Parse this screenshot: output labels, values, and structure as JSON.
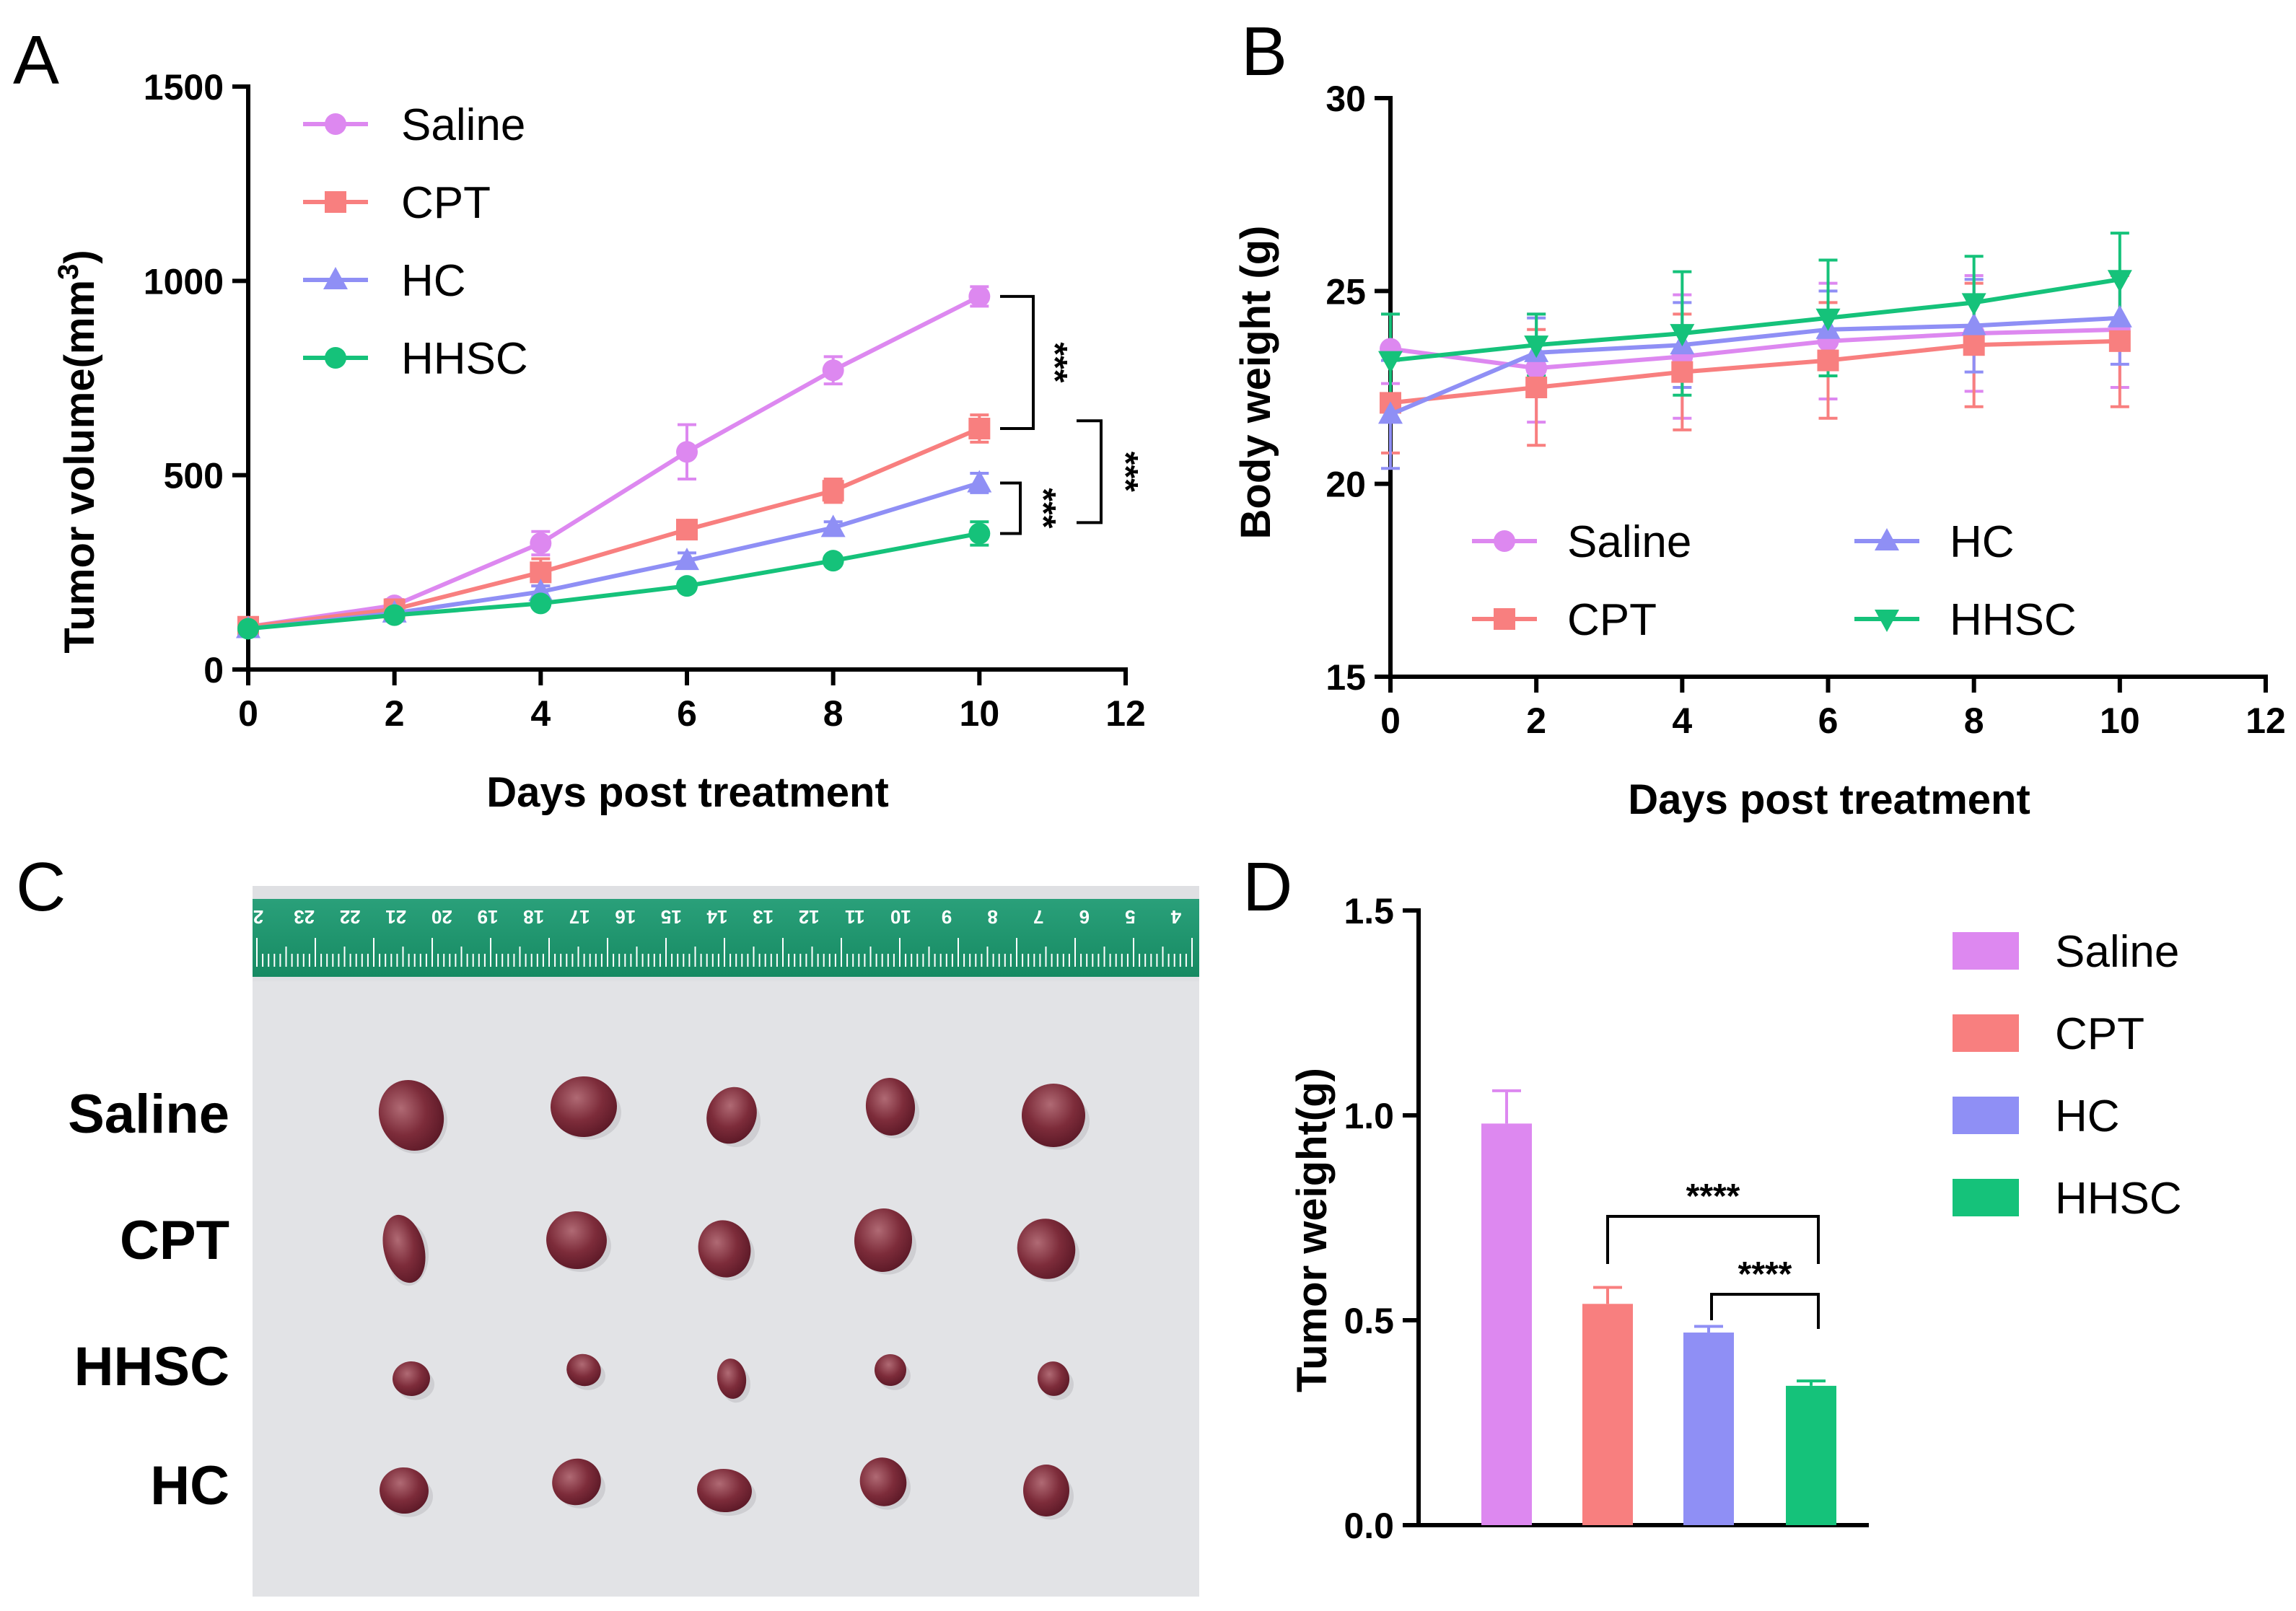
{
  "figure": {
    "panels": [
      {
        "letter": "A"
      },
      {
        "letter": "B"
      },
      {
        "letter": "C"
      },
      {
        "letter": "D"
      }
    ]
  },
  "colors": {
    "Saline": "#dd88f0",
    "CPT": "#f87f7f",
    "HC": "#8f8ff5",
    "HHSC": "#15c27a"
  },
  "chart_data": [
    {
      "id": "A",
      "type": "line",
      "title": "",
      "xlabel": "Days post treatment",
      "ylabel_main": "Tumor volume(mm",
      "ylabel_sup": "3",
      "ylabel_close": ")",
      "xlim": [
        0,
        12
      ],
      "ylim": [
        0,
        1500
      ],
      "xticks": [
        "0",
        "2",
        "4",
        "6",
        "8",
        "10",
        "12"
      ],
      "yticks": [
        "0",
        "500",
        "1000",
        "1500"
      ],
      "x": [
        0,
        2,
        4,
        6,
        8,
        10
      ],
      "legend_position": "top-left",
      "series": [
        {
          "name": "Saline",
          "marker": "circle",
          "values": [
            110,
            165,
            325,
            560,
            770,
            960
          ],
          "errors": [
            10,
            15,
            30,
            70,
            35,
            25
          ]
        },
        {
          "name": "CPT",
          "marker": "square",
          "values": [
            110,
            155,
            250,
            360,
            460,
            620
          ],
          "errors": [
            10,
            12,
            35,
            15,
            30,
            35
          ]
        },
        {
          "name": "HC",
          "marker": "triangle-up",
          "values": [
            105,
            145,
            200,
            280,
            365,
            480
          ],
          "errors": [
            8,
            10,
            15,
            20,
            15,
            25
          ]
        },
        {
          "name": "HHSC",
          "marker": "circle",
          "values": [
            105,
            140,
            170,
            215,
            280,
            350
          ],
          "errors": [
            8,
            8,
            10,
            10,
            10,
            30
          ]
        }
      ],
      "annotations": [
        "***",
        "***",
        "***"
      ]
    },
    {
      "id": "B",
      "type": "line",
      "title": "",
      "xlabel": "Days post treatment",
      "ylabel": "Body weight (g)",
      "xlim": [
        0,
        12
      ],
      "ylim": [
        15,
        30
      ],
      "xticks": [
        "0",
        "2",
        "4",
        "6",
        "8",
        "10",
        "12"
      ],
      "yticks": [
        "15",
        "20",
        "25",
        "30"
      ],
      "x": [
        0,
        2,
        4,
        6,
        8,
        10
      ],
      "legend_position": "bottom-center",
      "series": [
        {
          "name": "Saline",
          "marker": "circle",
          "values": [
            23.5,
            23.0,
            23.3,
            23.7,
            23.9,
            24.0
          ],
          "errors": [
            0.9,
            1.4,
            1.6,
            1.5,
            1.5,
            1.5
          ]
        },
        {
          "name": "CPT",
          "marker": "square",
          "values": [
            22.1,
            22.5,
            22.9,
            23.2,
            23.6,
            23.7
          ],
          "errors": [
            1.3,
            1.5,
            1.5,
            1.5,
            1.6,
            1.7
          ]
        },
        {
          "name": "HC",
          "marker": "triangle-up",
          "values": [
            21.8,
            23.4,
            23.6,
            24.0,
            24.1,
            24.3
          ],
          "errors": [
            1.4,
            0.9,
            1.1,
            1.0,
            1.2,
            1.2
          ]
        },
        {
          "name": "HHSC",
          "marker": "triangle-down",
          "values": [
            23.2,
            23.6,
            23.9,
            24.3,
            24.7,
            25.3
          ],
          "errors": [
            1.2,
            0.8,
            1.6,
            1.5,
            1.2,
            1.2
          ]
        }
      ]
    },
    {
      "id": "D",
      "type": "bar",
      "title": "",
      "xlabel": "",
      "ylabel": "Tumor weight(g)",
      "ylim": [
        0,
        1.5
      ],
      "yticks": [
        "0.0",
        "0.5",
        "1.0",
        "1.5"
      ],
      "categories": [
        "Saline",
        "CPT",
        "HC",
        "HHSC"
      ],
      "values": [
        0.98,
        0.54,
        0.47,
        0.34
      ],
      "errors": [
        0.08,
        0.04,
        0.015,
        0.012
      ],
      "legend_position": "right",
      "annotations": [
        "****",
        "****"
      ]
    }
  ],
  "photo": {
    "row_labels": [
      "Saline",
      "CPT",
      "HHSC",
      "HC"
    ],
    "ruler_numbers": [
      "2",
      "23",
      "22",
      "21",
      "20",
      "19",
      "18",
      "17",
      "16",
      "15",
      "14",
      "13",
      "12",
      "11",
      "10",
      "9",
      "8",
      "7",
      "6",
      "5",
      "4"
    ]
  }
}
